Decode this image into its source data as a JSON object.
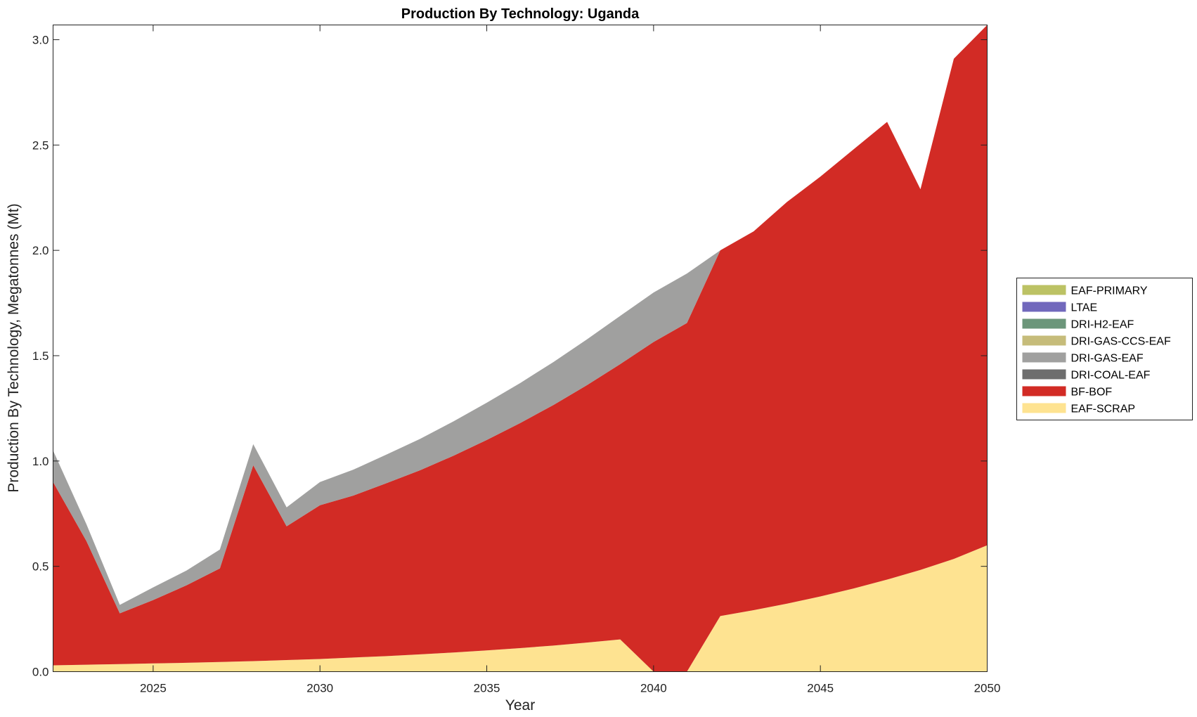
{
  "chart_data": {
    "type": "area",
    "title": "Production By Technology: Uganda",
    "xlabel": "Year",
    "ylabel": "Production By Technology, Megatonnes (Mt)",
    "xlim": [
      2022,
      2050
    ],
    "ylim": [
      0,
      3.07
    ],
    "xticks": [
      2025,
      2030,
      2035,
      2040,
      2045,
      2050
    ],
    "yticks": [
      0.0,
      0.5,
      1.0,
      1.5,
      2.0,
      2.5,
      3.0
    ],
    "ytick_labels": [
      "0.0",
      "0.5",
      "1.0",
      "1.5",
      "2.0",
      "2.5",
      "3.0"
    ],
    "grid": false,
    "legend_position": "right",
    "x": [
      2022,
      2023,
      2024,
      2025,
      2026,
      2027,
      2028,
      2029,
      2030,
      2031,
      2032,
      2033,
      2034,
      2035,
      2036,
      2037,
      2038,
      2039,
      2040,
      2041,
      2042,
      2043,
      2044,
      2045,
      2046,
      2047,
      2048,
      2049,
      2050
    ],
    "series": [
      {
        "name": "EAF-SCRAP",
        "color": "#FEE391",
        "values": [
          0.03,
          0.033,
          0.036,
          0.039,
          0.042,
          0.046,
          0.05,
          0.055,
          0.06,
          0.067,
          0.074,
          0.082,
          0.091,
          0.101,
          0.112,
          0.124,
          0.138,
          0.153,
          0.0,
          0.0,
          0.264,
          0.292,
          0.323,
          0.357,
          0.395,
          0.437,
          0.483,
          0.535,
          0.6
        ]
      },
      {
        "name": "BF-BOF",
        "color": "#D22B25",
        "values": [
          0.87,
          0.587,
          0.241,
          0.301,
          0.368,
          0.444,
          0.93,
          0.635,
          0.73,
          0.769,
          0.821,
          0.874,
          0.934,
          0.999,
          1.068,
          1.142,
          1.222,
          1.307,
          1.565,
          1.655,
          1.736,
          1.798,
          1.907,
          1.993,
          2.085,
          2.173,
          1.807,
          2.375,
          2.47
        ]
      },
      {
        "name": "DRI-COAL-EAF",
        "color": "#6E6E6E",
        "values": [
          0,
          0,
          0,
          0,
          0,
          0,
          0,
          0,
          0,
          0,
          0,
          0,
          0,
          0,
          0,
          0,
          0,
          0,
          0,
          0,
          0,
          0,
          0,
          0,
          0,
          0,
          0,
          0,
          0
        ]
      },
      {
        "name": "DRI-GAS-EAF",
        "color": "#A0A09F",
        "values": [
          0.15,
          0.08,
          0.04,
          0.06,
          0.07,
          0.09,
          0.1,
          0.09,
          0.11,
          0.123,
          0.136,
          0.149,
          0.163,
          0.177,
          0.19,
          0.204,
          0.217,
          0.229,
          0.235,
          0.235,
          0.0,
          0,
          0,
          0,
          0,
          0,
          0,
          0,
          0
        ]
      },
      {
        "name": "DRI-GAS-CCS-EAF",
        "color": "#C6BC7A",
        "values": [
          0,
          0,
          0,
          0,
          0,
          0,
          0,
          0,
          0,
          0,
          0,
          0,
          0,
          0,
          0,
          0,
          0,
          0,
          0,
          0,
          0,
          0,
          0,
          0,
          0,
          0,
          0,
          0,
          0
        ]
      },
      {
        "name": "DRI-H2-EAF",
        "color": "#6C967A",
        "values": [
          0,
          0,
          0,
          0,
          0,
          0,
          0,
          0,
          0,
          0,
          0,
          0,
          0,
          0,
          0,
          0,
          0,
          0,
          0,
          0,
          0,
          0,
          0,
          0,
          0,
          0,
          0,
          0,
          0
        ]
      },
      {
        "name": "LTAE",
        "color": "#7168BC",
        "values": [
          0,
          0,
          0,
          0,
          0,
          0,
          0,
          0,
          0,
          0,
          0,
          0,
          0,
          0,
          0,
          0,
          0,
          0,
          0,
          0,
          0,
          0,
          0,
          0,
          0,
          0,
          0,
          0,
          0
        ]
      },
      {
        "name": "EAF-PRIMARY",
        "color": "#BCC264",
        "values": [
          0,
          0,
          0,
          0,
          0,
          0,
          0,
          0,
          0,
          0,
          0,
          0,
          0,
          0,
          0,
          0,
          0,
          0,
          0,
          0,
          0,
          0,
          0,
          0,
          0,
          0,
          0,
          0,
          0
        ]
      }
    ],
    "legend_order": [
      "EAF-PRIMARY",
      "LTAE",
      "DRI-H2-EAF",
      "DRI-GAS-CCS-EAF",
      "DRI-GAS-EAF",
      "DRI-COAL-EAF",
      "BF-BOF",
      "EAF-SCRAP"
    ]
  }
}
